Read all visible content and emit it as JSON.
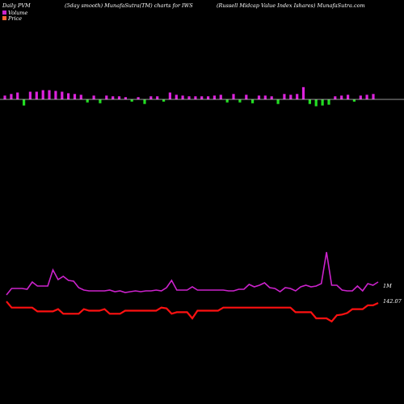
{
  "header": {
    "left": "Daily PVM",
    "center": "(5day smooth) MunafaSutra(TM) charts for IWS",
    "right": "(Russell Midcap Value   Index Ishares) MunafaSutra.com"
  },
  "legend": {
    "volume_label": "Volume",
    "price_label": "Price",
    "volume_color": "#cc22cc",
    "price_color": "#ff6633"
  },
  "colors": {
    "background": "#000000",
    "up_bar": "#dd22dd",
    "down_bar": "#22dd22",
    "volume_line": "#cc22cc",
    "price_line": "#ff1111",
    "baseline": "#cccccc"
  },
  "chart_data": {
    "type": "line",
    "volume_line_label": "1M",
    "price_line_label": "142.07",
    "pvm_bars": {
      "direction": [
        "up",
        "up",
        "up",
        "down",
        "up",
        "up",
        "up",
        "up",
        "up",
        "up",
        "up",
        "up",
        "up",
        "down",
        "up",
        "down",
        "up",
        "up",
        "up",
        "up",
        "down",
        "up",
        "down",
        "up",
        "up",
        "down",
        "up",
        "up",
        "up",
        "up",
        "up",
        "up",
        "up",
        "up",
        "up",
        "down",
        "up",
        "down",
        "up",
        "down",
        "up",
        "up",
        "up",
        "up",
        "up",
        "up",
        "up",
        "up",
        "down",
        "down",
        "down",
        "up",
        "up",
        "up",
        "up",
        "down",
        "up",
        "up",
        "up",
        "up",
        "up",
        "up",
        "up",
        "up",
        "up",
        "up",
        "up",
        "up",
        "down",
        "down",
        "down",
        "up",
        "up",
        "up",
        "up",
        "up",
        "up",
        "up",
        "up",
        "up",
        "up",
        "up",
        "up",
        "up",
        "up",
        "up",
        "up",
        "up",
        "up",
        "up",
        "up",
        "up",
        "up",
        "up",
        "up",
        "up",
        "up",
        "up",
        "up",
        "up",
        "up",
        "up",
        "up",
        "up",
        "up",
        "up",
        "up",
        "up",
        "up",
        "up",
        "up",
        "up",
        "up",
        "down",
        "up",
        "up",
        "up",
        "up",
        "up",
        "up",
        "up",
        "up",
        "up",
        "down",
        "up",
        "up",
        "up",
        "up",
        "up",
        "up",
        "up",
        "up",
        "up",
        "up",
        "up",
        "up"
      ],
      "magnitude": []
    },
    "pvm_series": [
      {
        "dir": "up",
        "v": 5
      },
      {
        "dir": "up",
        "v": 7
      },
      {
        "dir": "up",
        "v": 9
      },
      {
        "dir": "down",
        "v": 8
      },
      {
        "dir": "up",
        "v": 10
      },
      {
        "dir": "up",
        "v": 10
      },
      {
        "dir": "up",
        "v": 12
      },
      {
        "dir": "up",
        "v": 12
      },
      {
        "dir": "up",
        "v": 11
      },
      {
        "dir": "up",
        "v": 10
      },
      {
        "dir": "up",
        "v": 8
      },
      {
        "dir": "up",
        "v": 7
      },
      {
        "dir": "up",
        "v": 6
      },
      {
        "dir": "down",
        "v": 4
      },
      {
        "dir": "up",
        "v": 5
      },
      {
        "dir": "down",
        "v": 5
      },
      {
        "dir": "up",
        "v": 5
      },
      {
        "dir": "up",
        "v": 4
      },
      {
        "dir": "up",
        "v": 4
      },
      {
        "dir": "up",
        "v": 3
      },
      {
        "dir": "down",
        "v": 3
      },
      {
        "dir": "up",
        "v": 3
      },
      {
        "dir": "down",
        "v": 6
      },
      {
        "dir": "up",
        "v": 4
      },
      {
        "dir": "up",
        "v": 4
      },
      {
        "dir": "down",
        "v": 3
      },
      {
        "dir": "up",
        "v": 9
      },
      {
        "dir": "up",
        "v": 6
      },
      {
        "dir": "up",
        "v": 5
      },
      {
        "dir": "up",
        "v": 4
      },
      {
        "dir": "up",
        "v": 4
      },
      {
        "dir": "up",
        "v": 4
      },
      {
        "dir": "up",
        "v": 4
      },
      {
        "dir": "up",
        "v": 5
      },
      {
        "dir": "up",
        "v": 6
      },
      {
        "dir": "down",
        "v": 4
      },
      {
        "dir": "up",
        "v": 7
      },
      {
        "dir": "down",
        "v": 4
      },
      {
        "dir": "up",
        "v": 6
      },
      {
        "dir": "down",
        "v": 5
      },
      {
        "dir": "up",
        "v": 5
      },
      {
        "dir": "up",
        "v": 5
      },
      {
        "dir": "up",
        "v": 4
      },
      {
        "dir": "down",
        "v": 6
      },
      {
        "dir": "up",
        "v": 7
      },
      {
        "dir": "up",
        "v": 6
      },
      {
        "dir": "up",
        "v": 7
      },
      {
        "dir": "up",
        "v": 16
      },
      {
        "dir": "down",
        "v": 6
      },
      {
        "dir": "down",
        "v": 9
      },
      {
        "dir": "down",
        "v": 8
      },
      {
        "dir": "down",
        "v": 7
      },
      {
        "dir": "up",
        "v": 4
      },
      {
        "dir": "up",
        "v": 5
      },
      {
        "dir": "up",
        "v": 6
      },
      {
        "dir": "down",
        "v": 3
      },
      {
        "dir": "up",
        "v": 5
      },
      {
        "dir": "up",
        "v": 6
      },
      {
        "dir": "up",
        "v": 7
      }
    ],
    "volume_values": [
      10,
      18,
      18,
      18,
      17,
      26,
      21,
      21,
      21,
      41,
      29,
      33,
      28,
      27,
      19,
      16,
      15,
      15,
      15,
      15,
      16,
      14,
      15,
      13,
      14,
      15,
      14,
      15,
      15,
      16,
      15,
      19,
      28,
      16,
      16,
      16,
      20,
      16,
      16,
      16,
      16,
      16,
      16,
      15,
      15,
      17,
      17,
      23,
      20,
      22,
      25,
      19,
      18,
      14,
      19,
      18,
      15,
      20,
      22,
      20,
      21,
      24,
      63,
      22,
      22,
      16,
      15,
      15,
      21,
      15,
      24,
      22,
      26
    ],
    "price_values": [
      2,
      -6,
      -6,
      -6,
      -6,
      -6,
      -11,
      -11,
      -11,
      -11,
      -8,
      -14,
      -14,
      -14,
      -14,
      -8,
      -10,
      -10,
      -10,
      -8,
      -14,
      -14,
      -14,
      -10,
      -10,
      -10,
      -10,
      -10,
      -10,
      -10,
      -6,
      -7,
      -14,
      -12,
      -12,
      -12,
      -20,
      -10,
      -10,
      -10,
      -10,
      -10,
      -6,
      -6,
      -6,
      -6,
      -6,
      -6,
      -6,
      -6,
      -6,
      -6,
      -6,
      -6,
      -6,
      -6,
      -12,
      -12,
      -12,
      -12,
      -20,
      -20,
      -20,
      -24,
      -16,
      -15,
      -13,
      -8,
      -8,
      -8,
      -3,
      -3,
      0
    ]
  }
}
